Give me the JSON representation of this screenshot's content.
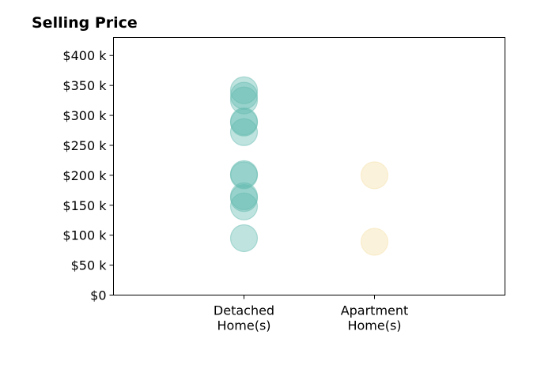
{
  "chart_data": {
    "type": "scatter",
    "title": "Selling Price",
    "xlabel": "",
    "ylabel": "",
    "categories": [
      "Detached\nHome(s)",
      "Apartment\nHome(s)"
    ],
    "ylim": [
      0,
      430000
    ],
    "y_ticks": [
      {
        "value": 0,
        "label": "$0"
      },
      {
        "value": 50000,
        "label": "$50 k"
      },
      {
        "value": 100000,
        "label": "$100 k"
      },
      {
        "value": 150000,
        "label": "$150 k"
      },
      {
        "value": 200000,
        "label": "$200 k"
      },
      {
        "value": 250000,
        "label": "$250 k"
      },
      {
        "value": 300000,
        "label": "$300 k"
      },
      {
        "value": 350000,
        "label": "$350 k"
      },
      {
        "value": 400000,
        "label": "$400 k"
      }
    ],
    "series": [
      {
        "category": "Detached\nHome(s)",
        "color": "#5fb9ae",
        "values": [
          95000,
          148000,
          162000,
          165000,
          200000,
          202000,
          272000,
          288000,
          290000,
          325000,
          333000,
          342000
        ]
      },
      {
        "category": "Apartment\nHome(s)",
        "color": "#f5dfa6",
        "values": [
          89000,
          200000
        ]
      }
    ],
    "grid": false,
    "legend": "none"
  }
}
